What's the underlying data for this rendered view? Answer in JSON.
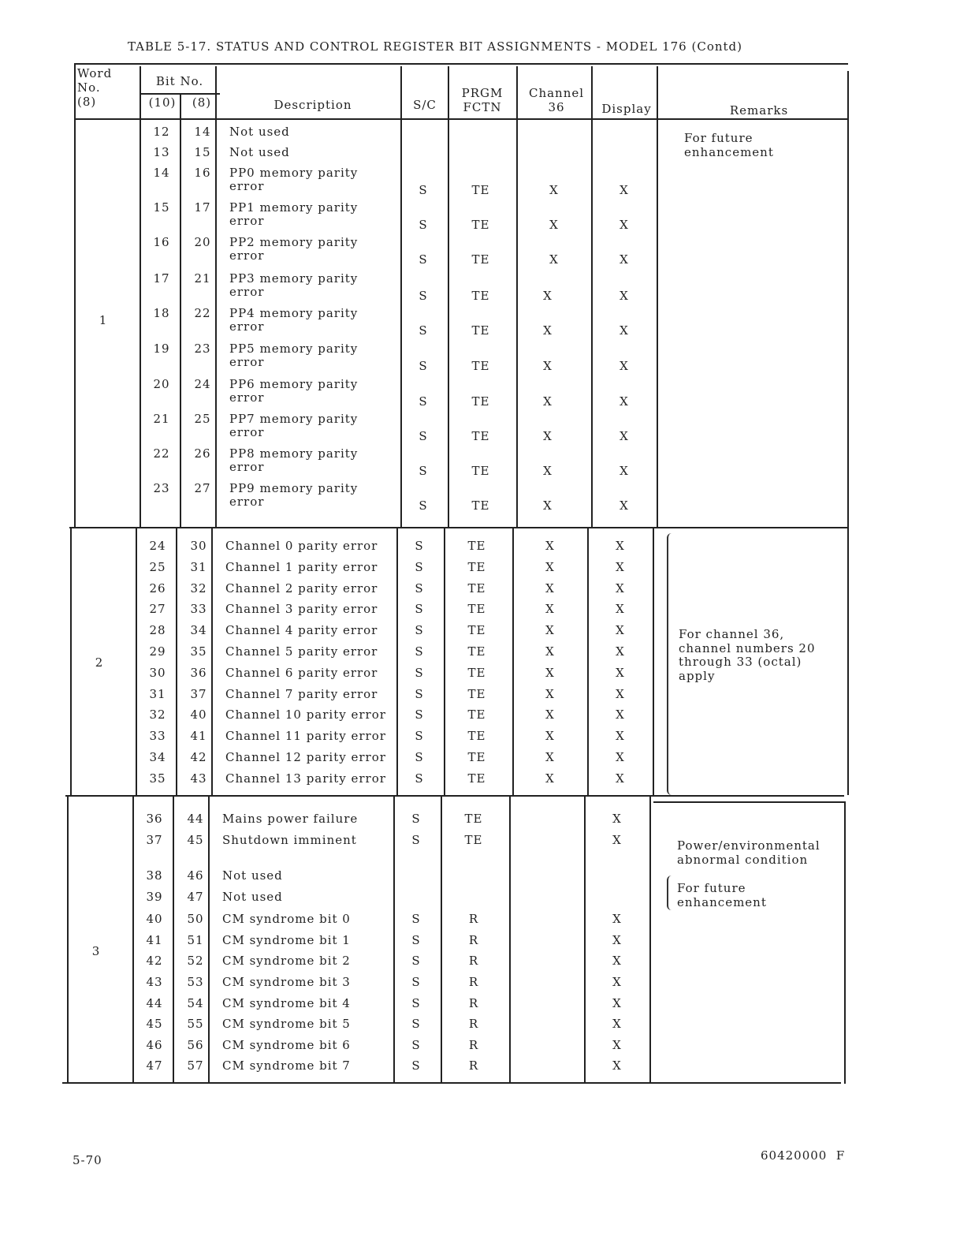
{
  "title": "TABLE 5-17.  STATUS AND CONTROL REGISTER BIT ASSIGNMENTS - MODEL 176 (Contd)",
  "headers": {
    "word": [
      "Word",
      "No.",
      "(8)"
    ],
    "bit_no": "Bit No.",
    "bit10": "(10)",
    "bit8": "(8)",
    "description": "Description",
    "sc": "S/C",
    "prgm": [
      "PRGM",
      "FCTN"
    ],
    "channel": [
      "Channel",
      "36"
    ],
    "display": "Display",
    "remarks": "Remarks"
  },
  "sections": [
    {
      "word": "1",
      "remarks": [
        {
          "lines": [
            "For future",
            "enhancement"
          ],
          "brace": false
        }
      ],
      "rows": [
        {
          "b10": "12",
          "b8": "14",
          "desc": [
            "Not used"
          ],
          "sc": "",
          "prgm": "",
          "ch36": "",
          "disp": ""
        },
        {
          "b10": "13",
          "b8": "15",
          "desc": [
            "Not used"
          ],
          "sc": "",
          "prgm": "",
          "ch36": "",
          "disp": ""
        },
        {
          "b10": "14",
          "b8": "16",
          "desc": [
            "PP0 memory parity",
            "error"
          ],
          "sc": "S",
          "prgm": "TE",
          "ch36": "X",
          "disp": "X"
        },
        {
          "b10": "15",
          "b8": "17",
          "desc": [
            "PP1 memory parity",
            "error"
          ],
          "sc": "S",
          "prgm": "TE",
          "ch36": "X",
          "disp": "X"
        },
        {
          "b10": "16",
          "b8": "20",
          "desc": [
            "PP2 memory parity",
            "error"
          ],
          "sc": "S",
          "prgm": "TE",
          "ch36": "X",
          "disp": "X"
        },
        {
          "b10": "17",
          "b8": "21",
          "desc": [
            "PP3 memory parity",
            "error"
          ],
          "sc": "S",
          "prgm": "TE",
          "ch36": "X",
          "disp": "X"
        },
        {
          "b10": "18",
          "b8": "22",
          "desc": [
            "PP4 memory parity",
            "error"
          ],
          "sc": "S",
          "prgm": "TE",
          "ch36": "X",
          "disp": "X"
        },
        {
          "b10": "19",
          "b8": "23",
          "desc": [
            "PP5 memory parity",
            "error"
          ],
          "sc": "S",
          "prgm": "TE",
          "ch36": "X",
          "disp": "X"
        },
        {
          "b10": "20",
          "b8": "24",
          "desc": [
            "PP6 memory parity",
            "error"
          ],
          "sc": "S",
          "prgm": "TE",
          "ch36": "X",
          "disp": "X"
        },
        {
          "b10": "21",
          "b8": "25",
          "desc": [
            "PP7 memory parity",
            "error"
          ],
          "sc": "S",
          "prgm": "TE",
          "ch36": "X",
          "disp": "X"
        },
        {
          "b10": "22",
          "b8": "26",
          "desc": [
            "PP8 memory parity",
            "error"
          ],
          "sc": "S",
          "prgm": "TE",
          "ch36": "X",
          "disp": "X"
        },
        {
          "b10": "23",
          "b8": "27",
          "desc": [
            "PP9 memory parity",
            "error"
          ],
          "sc": "S",
          "prgm": "TE",
          "ch36": "X",
          "disp": "X"
        }
      ]
    },
    {
      "word": "2",
      "remarks": [
        {
          "lines": [
            "For channel 36,",
            "channel numbers 20",
            "through 33 (octal)",
            "apply"
          ],
          "brace": true
        }
      ],
      "rows": [
        {
          "b10": "24",
          "b8": "30",
          "desc": [
            "Channel 0 parity error"
          ],
          "sc": "S",
          "prgm": "TE",
          "ch36": "X",
          "disp": "X"
        },
        {
          "b10": "25",
          "b8": "31",
          "desc": [
            "Channel 1 parity error"
          ],
          "sc": "S",
          "prgm": "TE",
          "ch36": "X",
          "disp": "X"
        },
        {
          "b10": "26",
          "b8": "32",
          "desc": [
            "Channel 2 parity error"
          ],
          "sc": "S",
          "prgm": "TE",
          "ch36": "X",
          "disp": "X"
        },
        {
          "b10": "27",
          "b8": "33",
          "desc": [
            "Channel 3 parity error"
          ],
          "sc": "S",
          "prgm": "TE",
          "ch36": "X",
          "disp": "X"
        },
        {
          "b10": "28",
          "b8": "34",
          "desc": [
            "Channel 4 parity error"
          ],
          "sc": "S",
          "prgm": "TE",
          "ch36": "X",
          "disp": "X"
        },
        {
          "b10": "29",
          "b8": "35",
          "desc": [
            "Channel 5 parity error"
          ],
          "sc": "S",
          "prgm": "TE",
          "ch36": "X",
          "disp": "X"
        },
        {
          "b10": "30",
          "b8": "36",
          "desc": [
            "Channel 6 parity error"
          ],
          "sc": "S",
          "prgm": "TE",
          "ch36": "X",
          "disp": "X"
        },
        {
          "b10": "31",
          "b8": "37",
          "desc": [
            "Channel 7 parity error"
          ],
          "sc": "S",
          "prgm": "TE",
          "ch36": "X",
          "disp": "X"
        },
        {
          "b10": "32",
          "b8": "40",
          "desc": [
            "Channel 10 parity error"
          ],
          "sc": "S",
          "prgm": "TE",
          "ch36": "X",
          "disp": "X"
        },
        {
          "b10": "33",
          "b8": "41",
          "desc": [
            "Channel 11 parity error"
          ],
          "sc": "S",
          "prgm": "TE",
          "ch36": "X",
          "disp": "X"
        },
        {
          "b10": "34",
          "b8": "42",
          "desc": [
            "Channel 12 parity error"
          ],
          "sc": "S",
          "prgm": "TE",
          "ch36": "X",
          "disp": "X"
        },
        {
          "b10": "35",
          "b8": "43",
          "desc": [
            "Channel 13 parity error"
          ],
          "sc": "S",
          "prgm": "TE",
          "ch36": "X",
          "disp": "X"
        }
      ]
    },
    {
      "word": "3",
      "remarks": [
        {
          "lines": [
            "Power/environmental",
            "abnormal condition"
          ],
          "brace": false
        },
        {
          "lines": [
            "For future",
            "enhancement"
          ],
          "brace": true
        }
      ],
      "rows": [
        {
          "b10": "36",
          "b8": "44",
          "desc": [
            "Mains power failure"
          ],
          "sc": "S",
          "prgm": "TE",
          "ch36": "",
          "disp": "X"
        },
        {
          "b10": "37",
          "b8": "45",
          "desc": [
            "Shutdown imminent"
          ],
          "sc": "S",
          "prgm": "TE",
          "ch36": "",
          "disp": "X"
        },
        {
          "b10": "38",
          "b8": "46",
          "desc": [
            "Not used"
          ],
          "sc": "",
          "prgm": "",
          "ch36": "",
          "disp": ""
        },
        {
          "b10": "39",
          "b8": "47",
          "desc": [
            "Not used"
          ],
          "sc": "",
          "prgm": "",
          "ch36": "",
          "disp": ""
        },
        {
          "b10": "40",
          "b8": "50",
          "desc": [
            "CM syndrome bit 0"
          ],
          "sc": "S",
          "prgm": "R",
          "ch36": "",
          "disp": "X"
        },
        {
          "b10": "41",
          "b8": "51",
          "desc": [
            "CM syndrome bit 1"
          ],
          "sc": "S",
          "prgm": "R",
          "ch36": "",
          "disp": "X"
        },
        {
          "b10": "42",
          "b8": "52",
          "desc": [
            "CM syndrome bit 2"
          ],
          "sc": "S",
          "prgm": "R",
          "ch36": "",
          "disp": "X"
        },
        {
          "b10": "43",
          "b8": "53",
          "desc": [
            "CM syndrome bit 3"
          ],
          "sc": "S",
          "prgm": "R",
          "ch36": "",
          "disp": "X"
        },
        {
          "b10": "44",
          "b8": "54",
          "desc": [
            "CM syndrome bit 4"
          ],
          "sc": "S",
          "prgm": "R",
          "ch36": "",
          "disp": "X"
        },
        {
          "b10": "45",
          "b8": "55",
          "desc": [
            "CM syndrome bit 5"
          ],
          "sc": "S",
          "prgm": "R",
          "ch36": "",
          "disp": "X"
        },
        {
          "b10": "46",
          "b8": "56",
          "desc": [
            "CM syndrome bit 6"
          ],
          "sc": "S",
          "prgm": "R",
          "ch36": "",
          "disp": "X"
        },
        {
          "b10": "47",
          "b8": "57",
          "desc": [
            "CM syndrome bit 7"
          ],
          "sc": "S",
          "prgm": "R",
          "ch36": "",
          "disp": "X"
        }
      ]
    }
  ],
  "footer": {
    "page": "5-70",
    "doc_number": "60420000  F"
  }
}
